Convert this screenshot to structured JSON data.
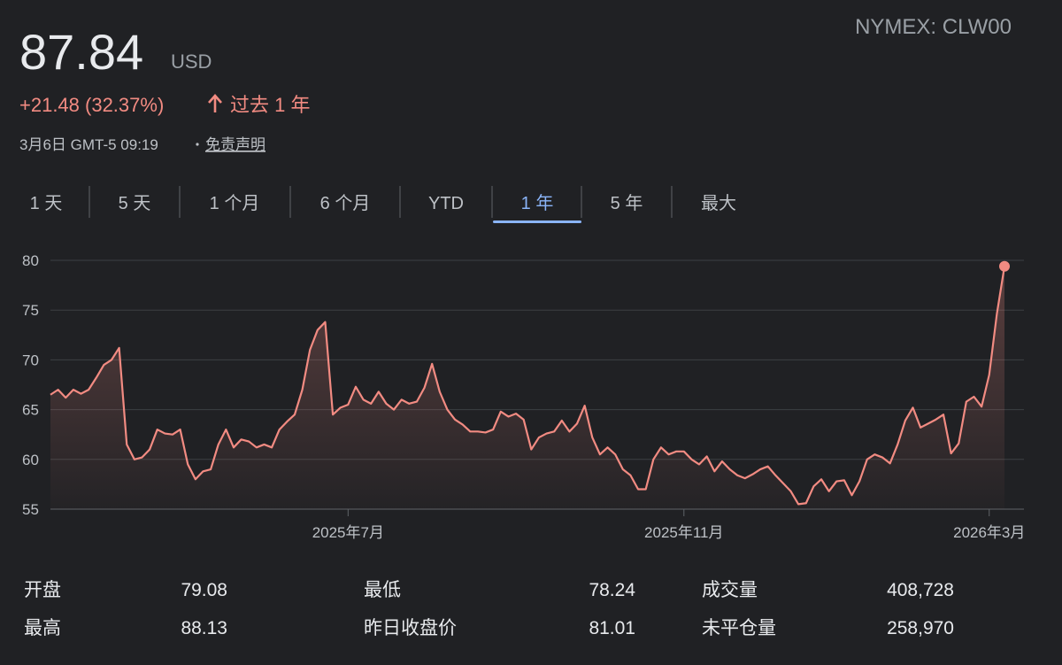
{
  "header": {
    "price": "87.84",
    "currency": "USD",
    "ticker": "NYMEX: CLW00",
    "change": "+21.48 (32.37%)",
    "period": "过去 1 年",
    "timestamp": "3月6日 GMT-5 09:19",
    "disclaimer": "免责声明"
  },
  "tabs": [
    "1 天",
    "5 天",
    "1 个月",
    "6 个月",
    "YTD",
    "1 年",
    "5 年",
    "最大"
  ],
  "selected_tab": 5,
  "chart_data": {
    "type": "line",
    "color": "#f28b82",
    "categories": [
      null,
      null,
      null,
      null,
      null,
      null,
      null,
      null,
      null,
      null,
      null,
      null,
      null,
      null,
      null,
      null,
      null,
      null,
      null,
      null,
      null,
      null,
      null,
      null,
      null,
      null,
      null,
      null,
      null,
      null,
      null,
      null,
      null,
      null,
      null,
      null,
      null,
      null,
      null,
      "2025年7月",
      null,
      null,
      null,
      null,
      null,
      null,
      null,
      null,
      null,
      null,
      null,
      null,
      null,
      null,
      null,
      null,
      null,
      null,
      null,
      null,
      null,
      null,
      null,
      null,
      null,
      null,
      null,
      null,
      null,
      null,
      null,
      null,
      null,
      null,
      null,
      null,
      null,
      null,
      null,
      null,
      null,
      null,
      null,
      "2025年11月",
      null,
      null,
      null,
      null,
      null,
      null,
      null,
      null,
      null,
      null,
      null,
      null,
      null,
      null,
      null,
      null,
      null,
      null,
      null,
      null,
      null,
      null,
      null,
      null,
      null,
      null,
      null,
      null,
      null,
      null,
      null,
      null,
      null,
      null,
      null,
      null,
      null,
      null,
      null,
      "2026年3月",
      null,
      null
    ],
    "values": [
      66.5,
      67,
      66.2,
      67,
      66.6,
      67,
      68.2,
      69.5,
      70,
      71.2,
      61.5,
      60,
      60.2,
      61,
      63,
      62.6,
      62.5,
      63,
      59.5,
      58,
      58.8,
      59,
      61.5,
      63,
      61.2,
      62,
      61.8,
      61.2,
      61.5,
      61.2,
      63,
      63.8,
      64.5,
      67,
      71,
      73,
      73.8,
      64.5,
      65.2,
      65.5,
      67.3,
      66,
      65.6,
      66.8,
      65.6,
      65,
      66,
      65.6,
      65.8,
      67.2,
      69.6,
      66.8,
      65,
      64,
      63.5,
      62.8,
      62.8,
      62.7,
      63,
      64.8,
      64.3,
      64.6,
      64,
      61,
      62.2,
      62.6,
      62.8,
      63.9,
      62.8,
      63.6,
      65.4,
      62.2,
      60.5,
      61.2,
      60.5,
      59,
      58.4,
      57,
      57,
      60,
      61.2,
      60.5,
      60.8,
      60.8,
      60,
      59.5,
      60.3,
      58.8,
      59.8,
      59,
      58.4,
      58.1,
      58.5,
      59,
      59.3,
      58.4,
      57.6,
      56.8,
      55.5,
      55.6,
      57.3,
      58,
      56.8,
      57.8,
      57.9,
      56.4,
      57.8,
      60,
      60.5,
      60.2,
      59.6,
      61.5,
      63.9,
      65.2,
      63.2,
      63.6,
      64,
      64.5,
      60.6,
      61.6,
      65.8,
      66.3,
      65.3,
      68.5,
      74.6,
      79.4
    ],
    "ylim": [
      55,
      80
    ],
    "yticks": [
      55,
      60,
      65,
      70,
      75,
      80
    ],
    "grid": true
  },
  "stats": {
    "rows": [
      [
        "开盘",
        "79.08",
        "最低",
        "78.24",
        "成交量",
        "408,728"
      ],
      [
        "最高",
        "88.13",
        "昨日收盘价",
        "81.01",
        "未平仓量",
        "258,970"
      ]
    ]
  }
}
